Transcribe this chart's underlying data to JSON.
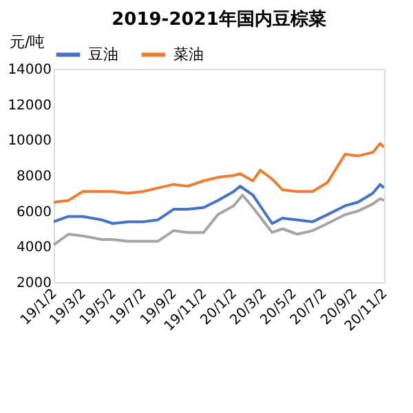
{
  "chart_data": {
    "type": "line",
    "title": "2019-2021年国内豆棕菜",
    "ylabel": "元/吨",
    "legend": "top",
    "grid": false,
    "xlim": [
      "2019-01-02",
      "2020-11-02"
    ],
    "ylim": [
      2000,
      14000
    ],
    "yticks": [
      2000,
      4000,
      6000,
      8000,
      10000,
      12000,
      14000
    ],
    "xticks": [
      {
        "value": "2019-01-02",
        "label": "19/1/2"
      },
      {
        "value": "2019-03-02",
        "label": "19/3/2"
      },
      {
        "value": "2019-05-02",
        "label": "19/5/2"
      },
      {
        "value": "2019-07-02",
        "label": "19/7/2"
      },
      {
        "value": "2019-09-02",
        "label": "19/9/2"
      },
      {
        "value": "2019-11-02",
        "label": "19/11/2"
      },
      {
        "value": "2020-01-02",
        "label": "20/1/2"
      },
      {
        "value": "2020-03-02",
        "label": "20/3/2"
      },
      {
        "value": "2020-05-02",
        "label": "20/5/2"
      },
      {
        "value": "2020-07-02",
        "label": "20/7/2"
      },
      {
        "value": "2020-09-02",
        "label": "20/9/2"
      },
      {
        "value": "2020-11-02",
        "label": "20/11/2"
      }
    ],
    "series": [
      {
        "name": "豆油",
        "color": "#4472c4",
        "x": [
          "2019-01-02",
          "2019-02-01",
          "2019-03-02",
          "2019-04-10",
          "2019-05-02",
          "2019-06-01",
          "2019-07-02",
          "2019-08-01",
          "2019-09-02",
          "2019-10-01",
          "2019-11-02",
          "2019-12-01",
          "2020-01-02",
          "2020-01-15",
          "2020-02-10",
          "2020-03-20",
          "2020-04-10",
          "2020-05-10",
          "2020-06-10",
          "2020-07-10",
          "2020-08-15",
          "2020-09-10",
          "2020-10-10",
          "2020-10-25",
          "2020-11-02"
        ],
        "values": [
          5400,
          5700,
          5700,
          5500,
          5300,
          5400,
          5400,
          5500,
          6100,
          6100,
          6200,
          6600,
          7100,
          7400,
          6900,
          5300,
          5600,
          5500,
          5400,
          5800,
          6300,
          6500,
          7000,
          7500,
          7300
        ]
      },
      {
        "name": "菜油",
        "color": "#ed7d31",
        "x": [
          "2019-01-02",
          "2019-02-01",
          "2019-03-02",
          "2019-04-10",
          "2019-05-02",
          "2019-06-01",
          "2019-07-02",
          "2019-08-01",
          "2019-09-02",
          "2019-10-01",
          "2019-11-02",
          "2019-12-01",
          "2020-01-02",
          "2020-01-15",
          "2020-02-10",
          "2020-02-25",
          "2020-03-20",
          "2020-04-10",
          "2020-05-10",
          "2020-06-10",
          "2020-07-10",
          "2020-08-15",
          "2020-09-10",
          "2020-10-10",
          "2020-10-25",
          "2020-11-02"
        ],
        "values": [
          6500,
          6600,
          7100,
          7100,
          7100,
          7000,
          7100,
          7300,
          7500,
          7400,
          7700,
          7900,
          8000,
          8100,
          7700,
          8300,
          7800,
          7200,
          7100,
          7100,
          7600,
          9200,
          9100,
          9300,
          9800,
          9600
        ]
      },
      {
        "color": "#a5a5a5",
        "x": [
          "2019-01-02",
          "2019-02-01",
          "2019-03-02",
          "2019-04-10",
          "2019-05-02",
          "2019-06-01",
          "2019-07-02",
          "2019-08-01",
          "2019-09-02",
          "2019-10-01",
          "2019-11-02",
          "2019-12-01",
          "2020-01-02",
          "2020-01-20",
          "2020-02-10",
          "2020-03-20",
          "2020-04-10",
          "2020-05-10",
          "2020-06-10",
          "2020-07-10",
          "2020-08-15",
          "2020-09-10",
          "2020-10-10",
          "2020-10-25",
          "2020-11-02"
        ],
        "values": [
          4100,
          4700,
          4600,
          4400,
          4400,
          4300,
          4300,
          4300,
          4900,
          4800,
          4800,
          5800,
          6300,
          6900,
          6200,
          4800,
          5000,
          4700,
          4900,
          5300,
          5800,
          6000,
          6400,
          6700,
          6600
        ]
      }
    ]
  }
}
